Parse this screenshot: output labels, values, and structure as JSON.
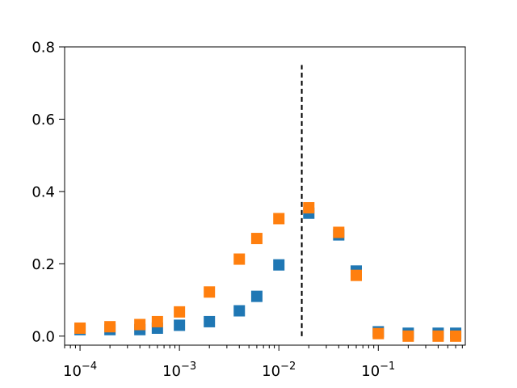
{
  "chart_data": {
    "type": "scatter",
    "title": "",
    "xlabel": "",
    "ylabel": "",
    "xscale": "log",
    "xlim": [
      7e-05,
      0.75
    ],
    "ylim": [
      -0.025,
      0.8
    ],
    "grid": false,
    "legend": "none",
    "y_ticks": [
      0.0,
      0.2,
      0.4,
      0.6,
      0.8
    ],
    "y_tick_labels": [
      "0.0",
      "0.2",
      "0.4",
      "0.6",
      "0.8"
    ],
    "x_ticks": [
      0.0001,
      0.001,
      0.01,
      0.1
    ],
    "x_tick_labels": [
      {
        "base": "10",
        "exp": "−4"
      },
      {
        "base": "10",
        "exp": "−3"
      },
      {
        "base": "10",
        "exp": "−2"
      },
      {
        "base": "10",
        "exp": "−1"
      }
    ],
    "vline": {
      "x": 0.017,
      "y_range": [
        0.0,
        0.75
      ],
      "style": "dashed",
      "color": "#000000"
    },
    "series": [
      {
        "color": "#1f77b4",
        "marker": "square",
        "points": [
          {
            "x": 0.0001,
            "y": 0.018
          },
          {
            "x": 0.0002,
            "y": 0.018
          },
          {
            "x": 0.0004,
            "y": 0.018
          },
          {
            "x": 0.0006,
            "y": 0.022
          },
          {
            "x": 0.001,
            "y": 0.03
          },
          {
            "x": 0.002,
            "y": 0.04
          },
          {
            "x": 0.004,
            "y": 0.07
          },
          {
            "x": 0.006,
            "y": 0.11
          },
          {
            "x": 0.01,
            "y": 0.197
          },
          {
            "x": 0.02,
            "y": 0.34
          },
          {
            "x": 0.04,
            "y": 0.28
          },
          {
            "x": 0.06,
            "y": 0.18
          },
          {
            "x": 0.1,
            "y": 0.012
          },
          {
            "x": 0.2,
            "y": 0.008
          },
          {
            "x": 0.4,
            "y": 0.008
          },
          {
            "x": 0.6,
            "y": 0.008
          }
        ]
      },
      {
        "color": "#ff7f0e",
        "marker": "square",
        "points": [
          {
            "x": 0.0001,
            "y": 0.022
          },
          {
            "x": 0.0002,
            "y": 0.026
          },
          {
            "x": 0.0004,
            "y": 0.032
          },
          {
            "x": 0.0006,
            "y": 0.04
          },
          {
            "x": 0.001,
            "y": 0.067
          },
          {
            "x": 0.002,
            "y": 0.122
          },
          {
            "x": 0.004,
            "y": 0.213
          },
          {
            "x": 0.006,
            "y": 0.27
          },
          {
            "x": 0.01,
            "y": 0.325
          },
          {
            "x": 0.02,
            "y": 0.355
          },
          {
            "x": 0.04,
            "y": 0.287
          },
          {
            "x": 0.06,
            "y": 0.168
          },
          {
            "x": 0.1,
            "y": 0.007
          },
          {
            "x": 0.2,
            "y": 0.0
          },
          {
            "x": 0.4,
            "y": 0.0
          },
          {
            "x": 0.6,
            "y": 0.0
          }
        ]
      }
    ]
  }
}
